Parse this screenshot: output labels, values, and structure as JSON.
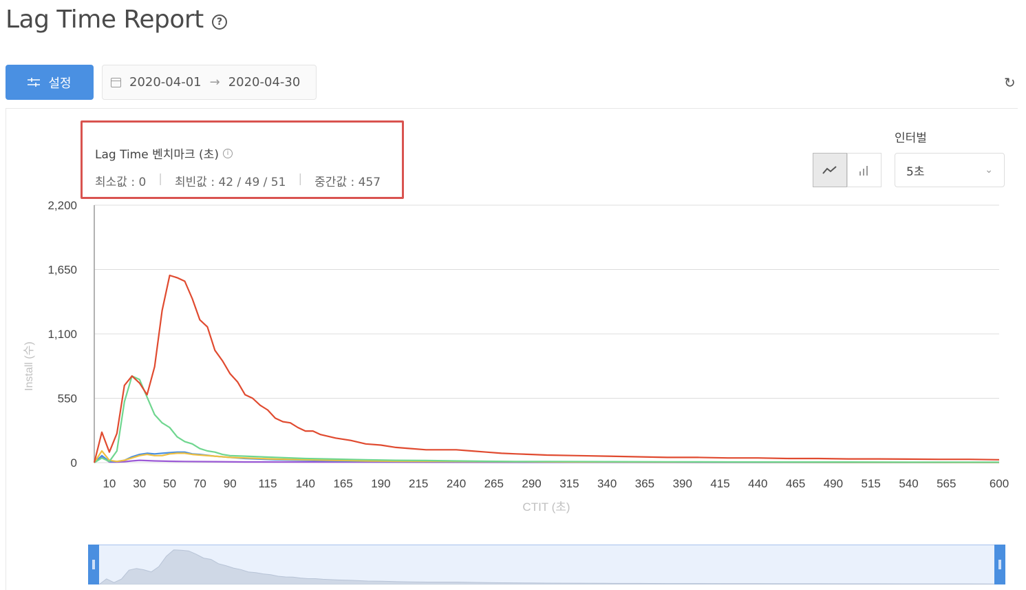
{
  "page": {
    "title": "Lag Time Report",
    "help_icon": "help-circle-icon"
  },
  "toolbar": {
    "settings_label": "설정",
    "settings_icon": "sliders-icon",
    "date_start": "2020-04-01",
    "date_arrow": "→",
    "date_end": "2020-04-30",
    "calendar_icon": "calendar-icon",
    "refresh_icon": "refresh-icon",
    "accent_color": "#4a90e2"
  },
  "benchmark": {
    "title": "Lag Time 벤치마크 (초)",
    "min_stat": "최소값 : 0",
    "mode_stat": "최빈값 : 42 / 49 / 51",
    "median_stat": "중간값 : 457",
    "highlight_color": "#d9534f"
  },
  "controls": {
    "interval_label": "인터벌",
    "interval_value": "5초",
    "line_chart_icon": "line-chart-icon",
    "bar_chart_icon": "bar-chart-icon",
    "active_view": "line"
  },
  "chart_data": {
    "type": "line",
    "xlabel": "CTIT (초)",
    "ylabel": "Install (수)",
    "ylim": [
      0,
      2200
    ],
    "xlim": [
      0,
      600
    ],
    "yticks": [
      0,
      550,
      1100,
      1650,
      2200
    ],
    "ytick_labels": [
      "0",
      "550",
      "1,100",
      "1,650",
      "2,200"
    ],
    "xticks": [
      10,
      30,
      50,
      70,
      90,
      115,
      140,
      165,
      190,
      215,
      240,
      265,
      290,
      315,
      340,
      365,
      390,
      415,
      440,
      465,
      490,
      515,
      540,
      565,
      600
    ],
    "grid": true,
    "series": [
      {
        "color": "#e04a2f",
        "x": [
          0,
          5,
          10,
          15,
          20,
          25,
          30,
          35,
          40,
          45,
          50,
          55,
          60,
          65,
          70,
          75,
          80,
          85,
          90,
          95,
          100,
          105,
          110,
          115,
          120,
          125,
          130,
          135,
          140,
          145,
          150,
          160,
          170,
          180,
          190,
          200,
          210,
          220,
          230,
          240,
          250,
          260,
          270,
          280,
          290,
          300,
          320,
          340,
          360,
          380,
          400,
          420,
          440,
          460,
          480,
          500,
          520,
          540,
          560,
          580,
          600
        ],
        "y": [
          0,
          260,
          90,
          250,
          660,
          740,
          680,
          580,
          820,
          1300,
          1600,
          1580,
          1550,
          1400,
          1220,
          1160,
          960,
          870,
          760,
          690,
          580,
          550,
          490,
          450,
          380,
          350,
          340,
          300,
          270,
          270,
          240,
          210,
          190,
          160,
          150,
          130,
          120,
          110,
          110,
          110,
          100,
          90,
          80,
          75,
          70,
          65,
          60,
          55,
          50,
          45,
          45,
          40,
          40,
          35,
          35,
          32,
          32,
          30,
          28,
          28,
          25
        ]
      },
      {
        "color": "#6fd68f",
        "x": [
          0,
          5,
          10,
          15,
          20,
          25,
          30,
          35,
          40,
          45,
          50,
          55,
          60,
          65,
          70,
          75,
          80,
          85,
          90,
          100,
          110,
          120,
          140,
          160,
          180,
          200,
          220,
          240,
          260,
          280,
          300,
          340,
          380,
          420,
          460,
          500,
          540,
          600
        ],
        "y": [
          0,
          40,
          10,
          100,
          520,
          740,
          710,
          560,
          410,
          340,
          300,
          220,
          180,
          160,
          120,
          100,
          90,
          70,
          60,
          55,
          50,
          45,
          35,
          30,
          25,
          20,
          18,
          15,
          12,
          10,
          10,
          8,
          7,
          6,
          5,
          5,
          4,
          4
        ]
      },
      {
        "color": "#f0c040",
        "x": [
          0,
          5,
          10,
          15,
          20,
          25,
          30,
          35,
          40,
          45,
          50,
          55,
          60,
          65,
          70,
          80,
          90,
          100,
          120,
          140,
          160,
          180,
          200,
          240,
          280,
          320,
          380,
          440,
          500,
          600
        ],
        "y": [
          0,
          100,
          20,
          10,
          20,
          40,
          60,
          70,
          60,
          60,
          75,
          80,
          80,
          70,
          65,
          55,
          45,
          40,
          30,
          25,
          20,
          15,
          12,
          10,
          8,
          6,
          5,
          4,
          3,
          2
        ]
      },
      {
        "color": "#4a8fe0",
        "x": [
          0,
          5,
          10,
          15,
          20,
          25,
          30,
          35,
          40,
          45,
          50,
          55,
          60,
          65,
          70,
          80,
          90,
          100,
          120,
          140,
          160,
          180,
          200,
          240,
          280,
          320,
          380,
          440,
          500,
          600
        ],
        "y": [
          0,
          60,
          10,
          10,
          20,
          50,
          70,
          80,
          75,
          80,
          85,
          90,
          90,
          75,
          70,
          55,
          45,
          35,
          25,
          20,
          15,
          12,
          10,
          8,
          6,
          5,
          4,
          3,
          2,
          2
        ]
      },
      {
        "color": "#9b59d6",
        "x": [
          0,
          5,
          10,
          15,
          20,
          25,
          30,
          40,
          50,
          60,
          80,
          100,
          150,
          200,
          300,
          400,
          500,
          600
        ],
        "y": [
          0,
          50,
          5,
          5,
          8,
          15,
          20,
          15,
          12,
          10,
          8,
          6,
          5,
          4,
          3,
          2,
          2,
          2
        ]
      }
    ]
  },
  "navigator": {
    "left_handle": "drag-handle-icon",
    "right_handle": "drag-handle-icon"
  }
}
